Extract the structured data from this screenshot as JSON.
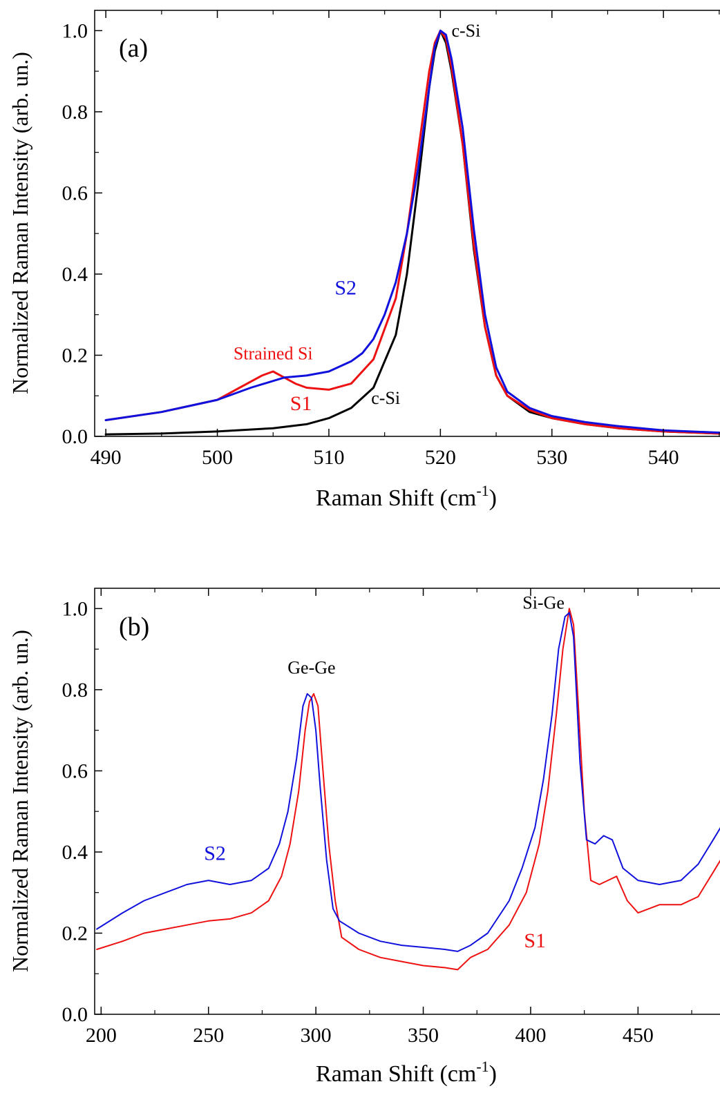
{
  "chart_data": [
    {
      "panel_label": "(a)",
      "type": "line",
      "title": "",
      "xlabel": "Raman Shift (cm",
      "xlabel_sup": "-1",
      "xlabel_end": ")",
      "ylabel": "Normalized Raman Intensity (arb. un.)",
      "xlim": [
        489,
        546
      ],
      "ylim": [
        0.0,
        1.05
      ],
      "xticks": [
        490,
        500,
        510,
        520,
        530,
        540
      ],
      "xtick_labels": [
        "490",
        "500",
        "510",
        "520",
        "530",
        "540"
      ],
      "yticks": [
        0.0,
        0.2,
        0.4,
        0.6,
        0.8,
        1.0
      ],
      "ytick_labels": [
        "0.0",
        "0.2",
        "0.4",
        "0.6",
        "0.8",
        "1.0"
      ],
      "grid": false,
      "series": [
        {
          "name": "c-Si",
          "color": "#000000",
          "x": [
            490,
            495,
            500,
            505,
            508,
            510,
            512,
            514,
            516,
            517,
            518,
            519,
            519.5,
            520,
            520.5,
            521,
            522,
            523,
            524,
            525,
            526,
            528,
            530,
            533,
            536,
            540,
            546
          ],
          "y": [
            0.005,
            0.007,
            0.012,
            0.02,
            0.03,
            0.045,
            0.07,
            0.12,
            0.25,
            0.4,
            0.62,
            0.86,
            0.95,
            1.0,
            0.97,
            0.9,
            0.72,
            0.46,
            0.27,
            0.15,
            0.1,
            0.06,
            0.045,
            0.03,
            0.02,
            0.012,
            0.006
          ]
        },
        {
          "name": "S1",
          "color": "#ee1111",
          "x": [
            490,
            495,
            500,
            502,
            504,
            505,
            506,
            507,
            508,
            510,
            512,
            514,
            516,
            517,
            518,
            519,
            519.5,
            520,
            520.5,
            521,
            522,
            523,
            524,
            525,
            526,
            528,
            530,
            533,
            536,
            540,
            546
          ],
          "y": [
            0.04,
            0.06,
            0.09,
            0.12,
            0.15,
            0.16,
            0.145,
            0.13,
            0.12,
            0.115,
            0.13,
            0.19,
            0.34,
            0.5,
            0.7,
            0.9,
            0.97,
            1.0,
            0.98,
            0.91,
            0.72,
            0.47,
            0.27,
            0.15,
            0.1,
            0.065,
            0.045,
            0.03,
            0.02,
            0.012,
            0.006
          ]
        },
        {
          "name": "S2",
          "color": "#1111dd",
          "x": [
            490,
            495,
            500,
            503,
            506,
            508,
            510,
            512,
            513,
            514,
            515,
            516,
            517,
            518,
            519,
            519.5,
            520,
            520.5,
            521,
            522,
            523,
            524,
            525,
            526,
            528,
            530,
            533,
            536,
            540,
            546
          ],
          "y": [
            0.04,
            0.06,
            0.09,
            0.12,
            0.145,
            0.15,
            0.16,
            0.185,
            0.205,
            0.24,
            0.3,
            0.38,
            0.5,
            0.66,
            0.86,
            0.96,
            1.0,
            0.99,
            0.93,
            0.76,
            0.51,
            0.3,
            0.17,
            0.11,
            0.07,
            0.05,
            0.035,
            0.025,
            0.015,
            0.008
          ]
        }
      ],
      "annotations": [
        {
          "text": "c-Si",
          "x": 521,
          "y": 0.985,
          "color": "#000000",
          "size": 26,
          "anchor": "start"
        },
        {
          "text": "c-Si",
          "x": 513.8,
          "y": 0.08,
          "color": "#000000",
          "size": 26,
          "anchor": "start"
        },
        {
          "text": "Strained Si",
          "x": 505,
          "y": 0.19,
          "color": "#ee1111",
          "size": 26,
          "anchor": "middle"
        },
        {
          "text": "S1",
          "x": 507.5,
          "y": 0.065,
          "color": "#ee1111",
          "size": 30,
          "anchor": "middle"
        },
        {
          "text": "S2",
          "x": 511.5,
          "y": 0.35,
          "color": "#1111dd",
          "size": 30,
          "anchor": "middle"
        }
      ]
    },
    {
      "panel_label": "(b)",
      "type": "line",
      "title": "",
      "xlabel": "Raman Shift (cm",
      "xlabel_sup": "-1",
      "xlabel_end": ")",
      "ylabel": "Normalized Raman Intensity (arb. un.)",
      "xlim": [
        197,
        493
      ],
      "ylim": [
        0.0,
        1.05
      ],
      "xticks": [
        200,
        250,
        300,
        350,
        400,
        450
      ],
      "xtick_labels": [
        "200",
        "250",
        "300",
        "350",
        "400",
        "450"
      ],
      "yticks": [
        0.0,
        0.2,
        0.4,
        0.6,
        0.8,
        1.0
      ],
      "ytick_labels": [
        "0.0",
        "0.2",
        "0.4",
        "0.6",
        "0.8",
        "1.0"
      ],
      "grid": false,
      "series": [
        {
          "name": "S1",
          "color": "#ee1111",
          "x": [
            198,
            210,
            220,
            230,
            240,
            250,
            260,
            270,
            278,
            284,
            288,
            292,
            295,
            297,
            299,
            301,
            303,
            306,
            309,
            312,
            320,
            330,
            340,
            350,
            360,
            366,
            372,
            380,
            390,
            398,
            404,
            408,
            412,
            415,
            418,
            420,
            422,
            425,
            428,
            432,
            436,
            440,
            445,
            450,
            460,
            470,
            478,
            485,
            493
          ],
          "y": [
            0.16,
            0.18,
            0.2,
            0.21,
            0.22,
            0.23,
            0.235,
            0.25,
            0.28,
            0.34,
            0.42,
            0.55,
            0.7,
            0.77,
            0.79,
            0.76,
            0.62,
            0.42,
            0.28,
            0.19,
            0.16,
            0.14,
            0.13,
            0.12,
            0.115,
            0.11,
            0.14,
            0.16,
            0.22,
            0.3,
            0.42,
            0.55,
            0.74,
            0.9,
            1.0,
            0.96,
            0.78,
            0.5,
            0.33,
            0.32,
            0.33,
            0.34,
            0.28,
            0.25,
            0.27,
            0.27,
            0.29,
            0.35,
            0.42
          ]
        },
        {
          "name": "S2",
          "color": "#1111dd",
          "x": [
            198,
            210,
            220,
            230,
            240,
            250,
            260,
            270,
            278,
            283,
            287,
            291,
            294,
            296,
            298,
            300,
            302,
            305,
            308,
            311,
            320,
            330,
            340,
            350,
            360,
            366,
            372,
            380,
            390,
            396,
            402,
            406,
            410,
            413,
            416,
            418,
            420,
            423,
            426,
            430,
            434,
            438,
            443,
            450,
            460,
            470,
            478,
            485,
            493
          ],
          "y": [
            0.21,
            0.25,
            0.28,
            0.3,
            0.32,
            0.33,
            0.32,
            0.33,
            0.36,
            0.42,
            0.5,
            0.63,
            0.76,
            0.79,
            0.78,
            0.7,
            0.56,
            0.38,
            0.26,
            0.23,
            0.2,
            0.18,
            0.17,
            0.165,
            0.16,
            0.155,
            0.17,
            0.2,
            0.28,
            0.36,
            0.46,
            0.58,
            0.74,
            0.9,
            0.98,
            0.99,
            0.93,
            0.62,
            0.43,
            0.42,
            0.44,
            0.43,
            0.36,
            0.33,
            0.32,
            0.33,
            0.37,
            0.43,
            0.5
          ]
        }
      ],
      "annotations": [
        {
          "text": "Ge-Ge",
          "x": 298,
          "y": 0.84,
          "color": "#000000",
          "size": 26,
          "anchor": "middle"
        },
        {
          "text": "Si-Ge",
          "x": 406,
          "y": 1.0,
          "color": "#000000",
          "size": 26,
          "anchor": "middle"
        },
        {
          "text": "S2",
          "x": 253,
          "y": 0.38,
          "color": "#1111dd",
          "size": 30,
          "anchor": "middle"
        },
        {
          "text": "S1",
          "x": 402,
          "y": 0.165,
          "color": "#ee1111",
          "size": 30,
          "anchor": "middle"
        }
      ]
    }
  ]
}
